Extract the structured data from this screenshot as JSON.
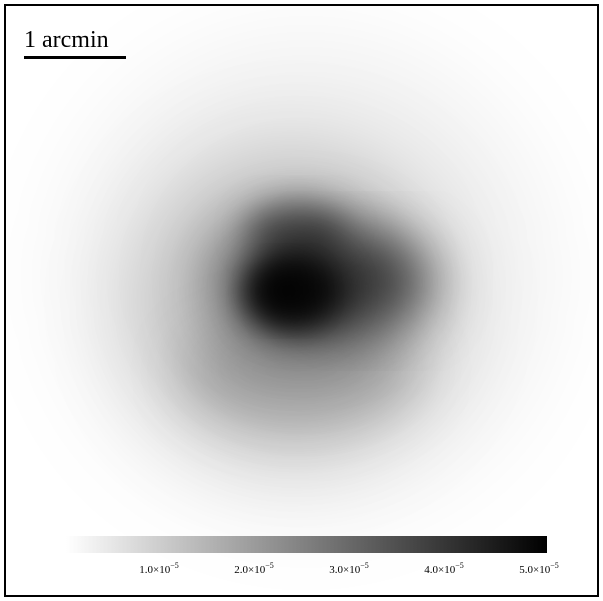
{
  "scale_bar": {
    "label": "1 arcmin"
  },
  "colorbar": {
    "min_color": "#ffffff",
    "max_color": "#000000",
    "ticks": [
      {
        "mantissa": "1.0",
        "times": "×10",
        "exponent": "−5",
        "value": 1e-05
      },
      {
        "mantissa": "2.0",
        "times": "×10",
        "exponent": "−5",
        "value": 2e-05
      },
      {
        "mantissa": "3.0",
        "times": "×10",
        "exponent": "−5",
        "value": 3e-05
      },
      {
        "mantissa": "4.0",
        "times": "×10",
        "exponent": "−5",
        "value": 4e-05
      },
      {
        "mantissa": "5.0",
        "times": "×10",
        "exponent": "−5",
        "value": 5e-05
      }
    ]
  },
  "colors": {
    "frame": "#000000",
    "background": "#ffffff"
  }
}
